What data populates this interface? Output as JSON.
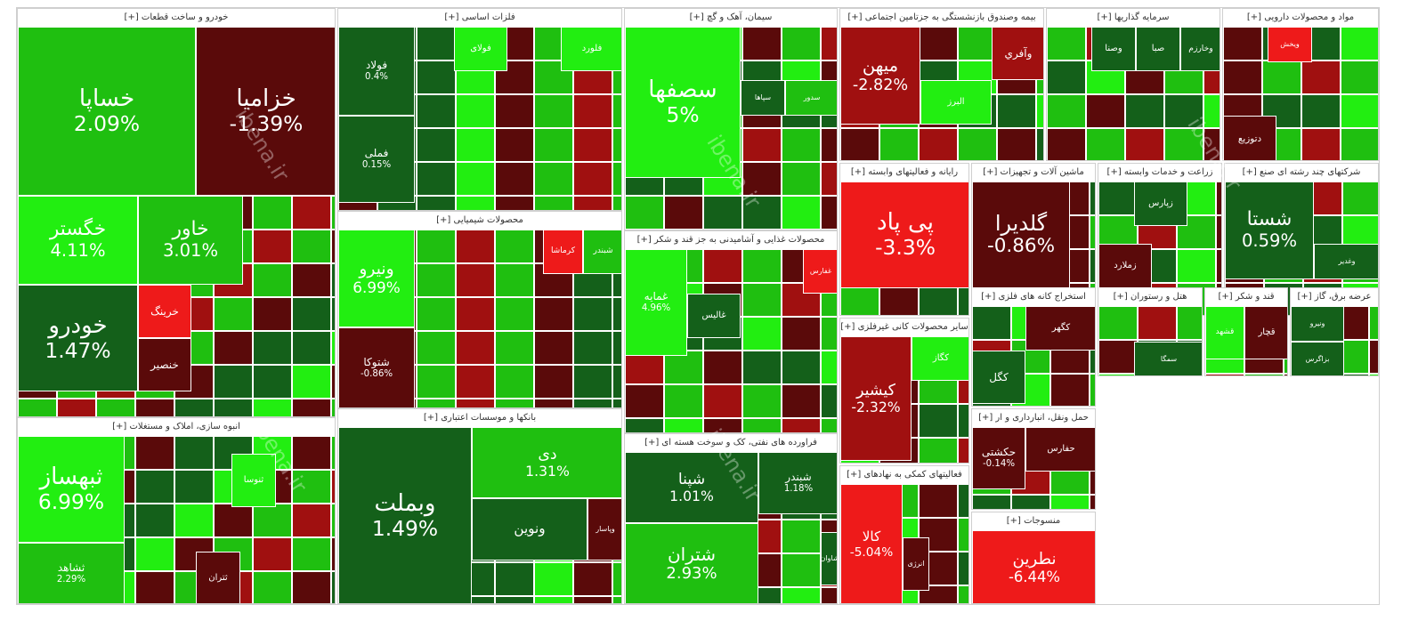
{
  "colors": {
    "pos_strong": "#22ee11",
    "pos_mid": "#1fbf10",
    "pos_dark": "#14601a",
    "neg_strong": "#ee1a1a",
    "neg_mid": "#a01010",
    "neg_dark": "#5a0a0a"
  },
  "watermark": "ibena.ir",
  "chart_data": {
    "type": "treemap",
    "sectors": [
      {
        "name": "خودرو و ساخت قطعات [+]",
        "items": [
          {
            "n": "خساپا",
            "p": "2.09%",
            "c": "pos_mid"
          },
          {
            "n": "خزامیا",
            "p": "-1.39%",
            "c": "neg_dark"
          },
          {
            "n": "خگستر",
            "p": "4.11%",
            "c": "pos_strong"
          },
          {
            "n": "خاور",
            "p": "3.01%",
            "c": "pos_mid"
          },
          {
            "n": "خودرو",
            "p": "1.47%",
            "c": "pos_dark"
          },
          {
            "n": "خرینگ",
            "p": "",
            "c": "neg_strong"
          },
          {
            "n": "خنصیر",
            "p": "",
            "c": "neg_dark"
          }
        ]
      },
      {
        "name": "انبوه سازی، املاک و مستغلات [+]",
        "items": [
          {
            "n": "ثبهساز",
            "p": "6.99%",
            "c": "pos_strong"
          },
          {
            "n": "ثشاهد",
            "p": "2.29%",
            "c": "pos_mid"
          },
          {
            "n": "ثنوسا",
            "p": "",
            "c": "pos_strong"
          },
          {
            "n": "ثتران",
            "p": "",
            "c": "neg_dark"
          }
        ]
      },
      {
        "name": "فلزات اساسی [+]",
        "items": [
          {
            "n": "فولاد",
            "p": "0.4%",
            "c": "pos_dark"
          },
          {
            "n": "فملی",
            "p": "0.15%",
            "c": "pos_dark"
          },
          {
            "n": "فولای",
            "p": "",
            "c": "pos_strong"
          },
          {
            "n": "فلورد",
            "p": "",
            "c": "pos_strong"
          }
        ]
      },
      {
        "name": "محصولات شیمیایی [+]",
        "items": [
          {
            "n": "ونیرو",
            "p": "6.99%",
            "c": "pos_strong"
          },
          {
            "n": "شتوکا",
            "p": "-0.86%",
            "c": "neg_dark"
          },
          {
            "n": "کرماشا",
            "p": "",
            "c": "neg_strong"
          },
          {
            "n": "شبندر",
            "p": "",
            "c": "pos_mid"
          }
        ]
      },
      {
        "name": "بانکها و موسسات اعتباری [+]",
        "items": [
          {
            "n": "وبملت",
            "p": "1.49%",
            "c": "pos_dark"
          },
          {
            "n": "دی",
            "p": "1.31%",
            "c": "pos_mid"
          },
          {
            "n": "ونوین",
            "p": "",
            "c": "pos_dark"
          },
          {
            "n": "وپاسار",
            "p": "",
            "c": "neg_dark"
          }
        ]
      },
      {
        "name": "سیمان، آهک و گچ [+]",
        "items": [
          {
            "n": "سصفها",
            "p": "5%",
            "c": "pos_strong"
          },
          {
            "n": "سپاها",
            "p": "",
            "c": "pos_dark"
          },
          {
            "n": "سدور",
            "p": "",
            "c": "pos_mid"
          }
        ]
      },
      {
        "name": "محصولات غذایی و آشامیدنی به جز قند و شکر [+]",
        "items": [
          {
            "n": "غمایه",
            "p": "4.96%",
            "c": "pos_strong"
          },
          {
            "n": "غفارس",
            "p": "",
            "c": "neg_strong"
          },
          {
            "n": "غالیس",
            "p": "",
            "c": "pos_dark"
          }
        ]
      },
      {
        "name": "فراورده های نفتی، کک و سوخت هسته ای [+]",
        "items": [
          {
            "n": "شپنا",
            "p": "1.01%",
            "c": "pos_dark"
          },
          {
            "n": "شتران",
            "p": "2.93%",
            "c": "pos_mid"
          },
          {
            "n": "شبندر",
            "p": "1.18%",
            "c": "pos_dark"
          },
          {
            "n": "شاوان",
            "p": "",
            "c": "pos_dark"
          }
        ]
      },
      {
        "name": "بیمه وصندوق بازنشستگی به جزتامین اجتماعی [+]",
        "items": [
          {
            "n": "میهن",
            "p": "-2.82%",
            "c": "neg_mid"
          },
          {
            "n": "وآفري",
            "p": "",
            "c": "neg_mid"
          },
          {
            "n": "البرز",
            "p": "",
            "c": "pos_strong"
          }
        ]
      },
      {
        "name": "سرمایه گذاریها [+]",
        "items": [
          {
            "n": "وخارزم",
            "p": "",
            "c": "pos_dark"
          },
          {
            "n": "صبا",
            "p": "",
            "c": "pos_dark"
          },
          {
            "n": "وصنا",
            "p": "",
            "c": "pos_dark"
          }
        ]
      },
      {
        "name": "مواد و محصولات دارویی [+]",
        "items": [
          {
            "n": "ویخش",
            "p": "",
            "c": "neg_strong"
          },
          {
            "n": "دتوزیع",
            "p": "",
            "c": "neg_dark"
          }
        ]
      },
      {
        "name": "رایانه و فعالیتهای وابسته [+]",
        "items": [
          {
            "n": "پی پاد",
            "p": "-3.3%",
            "c": "neg_strong"
          }
        ]
      },
      {
        "name": "ماشین آلات و تجهیزات [+]",
        "items": [
          {
            "n": "گلدیرا",
            "p": "-0.86%",
            "c": "neg_dark"
          }
        ]
      },
      {
        "name": "زراعت و خدمات وابسته [+]",
        "items": [
          {
            "n": "زپارس",
            "p": "",
            "c": "pos_dark"
          },
          {
            "n": "زملارد",
            "p": "",
            "c": "neg_dark"
          }
        ]
      },
      {
        "name": "شرکتهای چند رشته ای صنع [+]",
        "items": [
          {
            "n": "شستا",
            "p": "0.59%",
            "c": "pos_dark"
          },
          {
            "n": "وغدیر",
            "p": "",
            "c": "pos_dark"
          }
        ]
      },
      {
        "name": "سایر محصولات کانی غیرفلزی [+]",
        "items": [
          {
            "n": "کیشیر",
            "p": "-2.32%",
            "c": "neg_mid"
          },
          {
            "n": "کگاز",
            "p": "",
            "c": "pos_strong"
          }
        ]
      },
      {
        "name": "استخراج کانه های فلزی [+]",
        "items": [
          {
            "n": "کگهر",
            "p": "",
            "c": "neg_dark"
          },
          {
            "n": "کگل",
            "p": "",
            "c": "pos_dark"
          }
        ]
      },
      {
        "name": "هتل و رستوران [+]",
        "items": [
          {
            "n": "سمگا",
            "p": "",
            "c": "pos_dark"
          }
        ]
      },
      {
        "name": "قند و شکر [+]",
        "items": [
          {
            "n": "قشهد",
            "p": "",
            "c": "pos_strong"
          },
          {
            "n": "قچار",
            "p": "",
            "c": "neg_dark"
          }
        ]
      },
      {
        "name": "عرضه برق، گاز [+]",
        "items": [
          {
            "n": "ونیرو",
            "p": "",
            "c": "pos_dark"
          },
          {
            "n": "بزاگرس",
            "p": "",
            "c": "pos_dark"
          }
        ]
      },
      {
        "name": "فعالیتهای کمکی به نهادهای [+]",
        "items": [
          {
            "n": "کالا",
            "p": "-5.04%",
            "c": "neg_strong"
          },
          {
            "n": "انرژی",
            "p": "",
            "c": "neg_dark"
          }
        ]
      },
      {
        "name": "حمل ونقل، انبارداری و ار [+]",
        "items": [
          {
            "n": "حکشتی",
            "p": "-0.14%",
            "c": "neg_dark"
          },
          {
            "n": "حفارس",
            "p": "",
            "c": "neg_dark"
          }
        ]
      },
      {
        "name": "منسوجات [+]",
        "items": [
          {
            "n": "نطرین",
            "p": "-6.44%",
            "c": "neg_strong"
          }
        ]
      }
    ]
  }
}
